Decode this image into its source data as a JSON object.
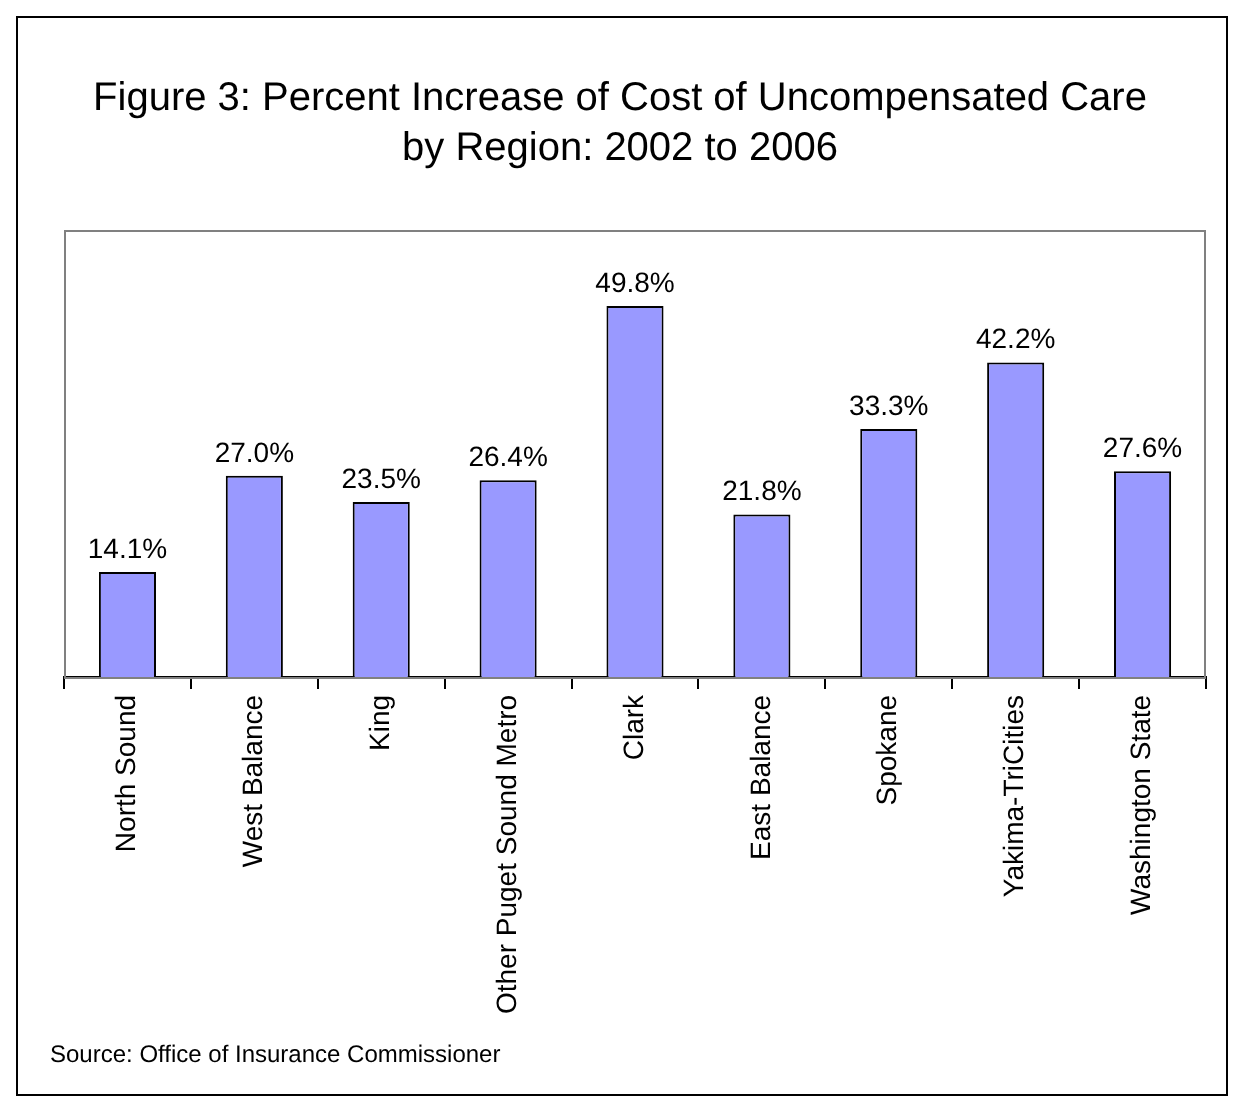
{
  "chart_data": {
    "type": "bar",
    "title": "Figure 3: Percent Increase of Cost of Uncompensated Care by Region: 2002 to 2006",
    "categories": [
      "North Sound",
      "West Balance",
      "King",
      "Other Puget Sound Metro",
      "Clark",
      "East Balance",
      "Spokane",
      "Yakima-TriCities",
      "Washington State"
    ],
    "values": [
      14.1,
      27.0,
      23.5,
      26.4,
      49.8,
      21.8,
      33.3,
      42.2,
      27.6
    ],
    "value_labels": [
      "14.1%",
      "27.0%",
      "23.5%",
      "26.4%",
      "49.8%",
      "21.8%",
      "33.3%",
      "42.2%",
      "27.6%"
    ],
    "color": "#9999ff",
    "grid": false,
    "legend": false,
    "tick_labels": "x",
    "annotations": [
      "Source: Office of Insurance Commissioner"
    ]
  }
}
